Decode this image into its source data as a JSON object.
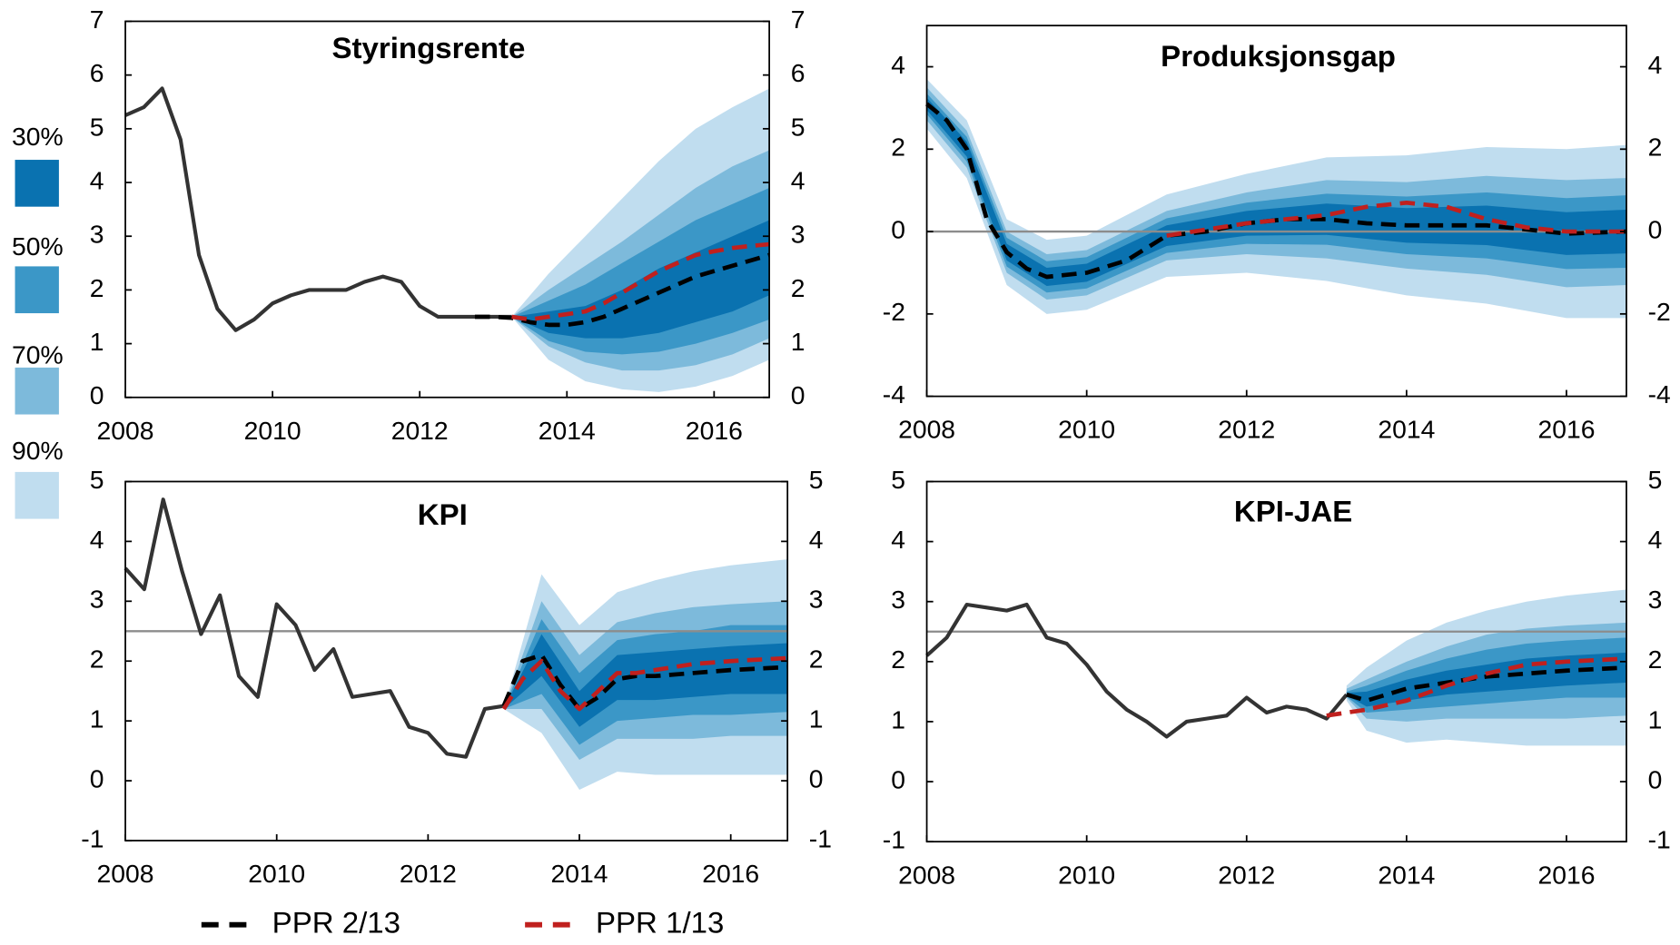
{
  "chart_data": [
    {
      "type": "fan",
      "title": "Styringsrente",
      "xlim": [
        2008,
        2016.75
      ],
      "xticks": [
        2008,
        2010,
        2012,
        2014,
        2016
      ],
      "ylim": [
        0,
        7
      ],
      "yticks": [
        0,
        1,
        2,
        3,
        4,
        5,
        6,
        7
      ],
      "y2lim": [
        0,
        7
      ],
      "y2ticks": [
        0,
        1,
        2,
        3,
        4,
        5,
        6,
        7
      ],
      "fan_x": [
        2013.25,
        2013.75,
        2014.25,
        2014.75,
        2015.25,
        2015.75,
        2016.25,
        2016.75
      ],
      "fan": [
        {
          "lower": [
            1.5,
            1.2,
            1.1,
            1.1,
            1.2,
            1.4,
            1.6,
            1.9
          ],
          "upper": [
            1.5,
            1.6,
            1.7,
            2.0,
            2.4,
            2.7,
            3.0,
            3.3
          ]
        },
        {
          "lower": [
            1.5,
            1.05,
            0.85,
            0.8,
            0.85,
            1.0,
            1.2,
            1.45
          ],
          "upper": [
            1.5,
            1.8,
            2.1,
            2.5,
            2.9,
            3.3,
            3.6,
            3.9
          ]
        },
        {
          "lower": [
            1.5,
            0.95,
            0.65,
            0.5,
            0.5,
            0.6,
            0.8,
            1.1
          ],
          "upper": [
            1.5,
            2.0,
            2.45,
            2.9,
            3.4,
            3.9,
            4.3,
            4.6
          ]
        },
        {
          "lower": [
            1.5,
            0.7,
            0.3,
            0.15,
            0.1,
            0.2,
            0.4,
            0.7
          ],
          "upper": [
            1.5,
            2.3,
            3.0,
            3.7,
            4.4,
            5.0,
            5.4,
            5.75
          ]
        }
      ],
      "series": [
        {
          "color": "#333333",
          "line_style": "solid",
          "x": [
            2008,
            2008.25,
            2008.5,
            2008.75,
            2009,
            2009.25,
            2009.5,
            2009.75,
            2010,
            2010.25,
            2010.5,
            2010.75,
            2011,
            2011.25,
            2011.5,
            2011.75,
            2012,
            2012.25,
            2012.5,
            2012.75,
            2013,
            2013.25
          ],
          "values": [
            5.25,
            5.4,
            5.75,
            4.8,
            2.65,
            1.65,
            1.25,
            1.45,
            1.75,
            1.9,
            2.0,
            2.0,
            2.0,
            2.15,
            2.25,
            2.15,
            1.7,
            1.5,
            1.5,
            1.5,
            1.5,
            1.5
          ]
        },
        {
          "name": "PPR 2/13",
          "color": "#000000",
          "line_style": "dashed",
          "x": [
            2012.75,
            2013,
            2013.25,
            2013.5,
            2013.75,
            2014,
            2014.25,
            2014.5,
            2014.75,
            2015,
            2015.25,
            2015.5,
            2015.75,
            2016,
            2016.25,
            2016.5,
            2016.75
          ],
          "values": [
            1.5,
            1.5,
            1.48,
            1.4,
            1.35,
            1.35,
            1.4,
            1.5,
            1.65,
            1.8,
            1.95,
            2.1,
            2.25,
            2.35,
            2.45,
            2.55,
            2.65
          ]
        },
        {
          "name": "PPR 1/13",
          "color": "#c0201e",
          "line_style": "dashed",
          "x": [
            2013.25,
            2013.5,
            2013.75,
            2014,
            2014.25,
            2014.5,
            2014.75,
            2015,
            2015.25,
            2015.5,
            2015.75,
            2016,
            2016.25,
            2016.5,
            2016.75
          ],
          "values": [
            1.5,
            1.45,
            1.5,
            1.55,
            1.6,
            1.75,
            1.95,
            2.15,
            2.35,
            2.5,
            2.65,
            2.72,
            2.78,
            2.82,
            2.85
          ]
        }
      ]
    },
    {
      "type": "fan",
      "title": "Produksjonsgap",
      "xlim": [
        2008,
        2016.75
      ],
      "xticks": [
        2008,
        2010,
        2012,
        2014,
        2016
      ],
      "ylim": [
        -4,
        5
      ],
      "yticks": [
        -4,
        -2,
        0,
        2,
        4
      ],
      "y2lim": [
        -4,
        5
      ],
      "y2ticks": [
        -4,
        -2,
        0,
        2,
        4
      ],
      "reference_line": 0,
      "fan_x": [
        2008,
        2008.5,
        2009,
        2009.5,
        2010,
        2011,
        2012,
        2013,
        2014,
        2015,
        2016,
        2016.75
      ],
      "fan": [
        {
          "lower": [
            2.95,
            1.82,
            -0.7,
            -1.32,
            -1.22,
            -0.35,
            -0.1,
            -0.08,
            -0.27,
            -0.33,
            -0.57,
            -0.53
          ],
          "upper": [
            3.25,
            2.18,
            -0.3,
            -0.88,
            -0.78,
            0.15,
            0.5,
            0.68,
            0.57,
            0.63,
            0.47,
            0.53
          ]
        },
        {
          "lower": [
            2.85,
            1.7,
            -0.85,
            -1.48,
            -1.38,
            -0.52,
            -0.3,
            -0.32,
            -0.55,
            -0.65,
            -0.91,
            -0.88
          ],
          "upper": [
            3.35,
            2.3,
            -0.15,
            -0.72,
            -0.62,
            0.32,
            0.7,
            0.92,
            0.85,
            0.95,
            0.81,
            0.88
          ]
        },
        {
          "lower": [
            2.7,
            1.55,
            -1.0,
            -1.65,
            -1.55,
            -0.7,
            -0.55,
            -0.65,
            -0.9,
            -1.05,
            -1.35,
            -1.3
          ],
          "upper": [
            3.5,
            2.45,
            0.0,
            -0.55,
            -0.45,
            0.5,
            0.95,
            1.25,
            1.2,
            1.35,
            1.25,
            1.3
          ]
        },
        {
          "lower": [
            2.5,
            1.3,
            -1.3,
            -2.0,
            -1.9,
            -1.1,
            -1.0,
            -1.2,
            -1.55,
            -1.75,
            -2.1,
            -2.1
          ],
          "upper": [
            3.7,
            2.7,
            0.3,
            -0.2,
            -0.1,
            0.9,
            1.4,
            1.8,
            1.85,
            2.05,
            2.0,
            2.1
          ]
        }
      ],
      "series": [
        {
          "name": "PPR 2/13",
          "color": "#000000",
          "line_style": "dashed",
          "x": [
            2008,
            2008.25,
            2008.5,
            2008.75,
            2009,
            2009.25,
            2009.5,
            2010,
            2010.5,
            2011,
            2011.5,
            2012,
            2012.5,
            2013,
            2013.5,
            2014,
            2014.5,
            2015,
            2015.5,
            2016,
            2016.75
          ],
          "values": [
            3.1,
            2.7,
            2.0,
            0.3,
            -0.5,
            -0.9,
            -1.1,
            -1.0,
            -0.7,
            -0.1,
            0.0,
            0.2,
            0.3,
            0.3,
            0.2,
            0.15,
            0.15,
            0.15,
            0.05,
            -0.05,
            0.0
          ]
        },
        {
          "name": "PPR 1/13",
          "color": "#c0201e",
          "line_style": "dashed",
          "x": [
            2011,
            2011.5,
            2012,
            2012.5,
            2013,
            2013.5,
            2014,
            2014.5,
            2015,
            2015.5,
            2016,
            2016.75
          ],
          "values": [
            -0.1,
            0.05,
            0.2,
            0.3,
            0.4,
            0.6,
            0.7,
            0.6,
            0.3,
            0.1,
            0.0,
            0.0
          ]
        }
      ]
    },
    {
      "type": "fan",
      "title": "KPI",
      "xlim": [
        2008,
        2016.75
      ],
      "xticks": [
        2008,
        2010,
        2012,
        2014,
        2016
      ],
      "ylim": [
        -1,
        5
      ],
      "yticks": [
        -1,
        0,
        1,
        2,
        3,
        4,
        5
      ],
      "y2lim": [
        -1,
        5
      ],
      "y2ticks": [
        -1,
        0,
        1,
        2,
        3,
        4,
        5
      ],
      "reference_line": 2.5,
      "fan_x": [
        2013,
        2013.5,
        2014,
        2014.5,
        2015,
        2015.5,
        2016,
        2016.75
      ],
      "fan": [
        {
          "lower": [
            1.2,
            1.75,
            0.9,
            1.35,
            1.35,
            1.4,
            1.45,
            1.45
          ],
          "upper": [
            1.2,
            2.45,
            1.5,
            2.1,
            2.15,
            2.2,
            2.25,
            2.3
          ]
        },
        {
          "lower": [
            1.2,
            1.45,
            0.6,
            1.0,
            1.05,
            1.1,
            1.1,
            1.15
          ],
          "upper": [
            1.2,
            2.7,
            1.8,
            2.35,
            2.45,
            2.5,
            2.6,
            2.6
          ]
        },
        {
          "lower": [
            1.2,
            1.2,
            0.35,
            0.7,
            0.7,
            0.7,
            0.75,
            0.75
          ],
          "upper": [
            1.2,
            3.0,
            2.1,
            2.65,
            2.8,
            2.9,
            2.95,
            3.0
          ]
        },
        {
          "lower": [
            1.2,
            0.8,
            -0.15,
            0.15,
            0.1,
            0.1,
            0.1,
            0.1
          ],
          "upper": [
            1.2,
            3.45,
            2.6,
            3.15,
            3.35,
            3.5,
            3.6,
            3.7
          ]
        }
      ],
      "series": [
        {
          "color": "#333333",
          "line_style": "solid",
          "x": [
            2008,
            2008.25,
            2008.5,
            2008.75,
            2009,
            2009.25,
            2009.5,
            2009.75,
            2010,
            2010.25,
            2010.5,
            2010.75,
            2011,
            2011.25,
            2011.5,
            2011.75,
            2012,
            2012.25,
            2012.5,
            2012.75,
            2013
          ],
          "values": [
            3.55,
            3.2,
            4.7,
            3.5,
            2.45,
            3.1,
            1.75,
            1.4,
            2.95,
            2.6,
            1.85,
            2.2,
            1.4,
            1.45,
            1.5,
            0.9,
            0.8,
            0.45,
            0.4,
            1.2,
            1.25
          ]
        },
        {
          "name": "PPR 2/13",
          "color": "#000000",
          "line_style": "dashed",
          "x": [
            2013,
            2013.25,
            2013.5,
            2013.75,
            2014,
            2014.25,
            2014.5,
            2014.75,
            2015,
            2015.5,
            2016,
            2016.75
          ],
          "values": [
            1.25,
            2.0,
            2.1,
            1.6,
            1.2,
            1.4,
            1.7,
            1.75,
            1.75,
            1.8,
            1.85,
            1.9
          ]
        },
        {
          "name": "PPR 1/13",
          "color": "#c0201e",
          "line_style": "dashed",
          "x": [
            2013,
            2013.25,
            2013.5,
            2013.75,
            2014,
            2014.25,
            2014.5,
            2014.75,
            2015,
            2015.5,
            2016,
            2016.75
          ],
          "values": [
            1.2,
            1.7,
            2.0,
            1.5,
            1.2,
            1.5,
            1.8,
            1.8,
            1.85,
            1.95,
            2.0,
            2.05
          ]
        }
      ]
    },
    {
      "type": "fan",
      "title": "KPI-JAE",
      "xlim": [
        2008,
        2016.75
      ],
      "xticks": [
        2008,
        2010,
        2012,
        2014,
        2016
      ],
      "ylim": [
        -1,
        5
      ],
      "yticks": [
        -1,
        0,
        1,
        2,
        3,
        4,
        5
      ],
      "y2lim": [
        -1,
        5
      ],
      "y2ticks": [
        -1,
        0,
        1,
        2,
        3,
        4,
        5
      ],
      "reference_line": 2.5,
      "fan_x": [
        2013.25,
        2013.5,
        2014,
        2014.5,
        2015,
        2015.5,
        2016,
        2016.75
      ],
      "fan": [
        {
          "lower": [
            1.44,
            1.25,
            1.35,
            1.45,
            1.5,
            1.55,
            1.6,
            1.65
          ],
          "upper": [
            1.48,
            1.5,
            1.7,
            1.85,
            1.95,
            2.05,
            2.1,
            2.15
          ]
        },
        {
          "lower": [
            1.42,
            1.15,
            1.2,
            1.25,
            1.3,
            1.35,
            1.4,
            1.4
          ],
          "upper": [
            1.5,
            1.6,
            1.85,
            2.05,
            2.2,
            2.3,
            2.35,
            2.4
          ]
        },
        {
          "lower": [
            1.4,
            1.05,
            1.0,
            1.05,
            1.05,
            1.05,
            1.05,
            1.1
          ],
          "upper": [
            1.55,
            1.7,
            2.0,
            2.25,
            2.45,
            2.55,
            2.6,
            2.65
          ]
        },
        {
          "lower": [
            1.35,
            0.85,
            0.65,
            0.7,
            0.65,
            0.6,
            0.6,
            0.6
          ],
          "upper": [
            1.6,
            1.9,
            2.35,
            2.65,
            2.85,
            3.0,
            3.1,
            3.2
          ]
        }
      ],
      "series": [
        {
          "color": "#333333",
          "line_style": "solid",
          "x": [
            2008,
            2008.25,
            2008.5,
            2008.75,
            2009,
            2009.25,
            2009.5,
            2009.75,
            2010,
            2010.25,
            2010.5,
            2010.75,
            2011,
            2011.25,
            2011.5,
            2011.75,
            2012,
            2012.25,
            2012.5,
            2012.75,
            2013,
            2013.25
          ],
          "values": [
            2.1,
            2.4,
            2.95,
            2.9,
            2.85,
            2.95,
            2.4,
            2.3,
            1.95,
            1.5,
            1.2,
            1.0,
            0.75,
            1.0,
            1.05,
            1.1,
            1.4,
            1.15,
            1.25,
            1.2,
            1.05,
            1.45
          ]
        },
        {
          "name": "PPR 2/13",
          "color": "#000000",
          "line_style": "dashed",
          "x": [
            2013.25,
            2013.5,
            2014,
            2014.5,
            2015,
            2015.5,
            2016,
            2016.75
          ],
          "values": [
            1.45,
            1.35,
            1.55,
            1.65,
            1.75,
            1.8,
            1.85,
            1.9
          ]
        },
        {
          "name": "PPR 1/13",
          "color": "#c0201e",
          "line_style": "dashed",
          "x": [
            2013,
            2013.5,
            2014,
            2014.5,
            2015,
            2015.5,
            2016,
            2016.75
          ],
          "values": [
            1.1,
            1.2,
            1.35,
            1.6,
            1.8,
            1.95,
            2.0,
            2.05
          ]
        }
      ]
    }
  ],
  "fan_legend": [
    {
      "name": "30%",
      "color": "#0a72b0"
    },
    {
      "name": "50%",
      "color": "#3b97c7"
    },
    {
      "name": "70%",
      "color": "#7dbadb"
    },
    {
      "name": "90%",
      "color": "#c0ddef"
    }
  ]
}
